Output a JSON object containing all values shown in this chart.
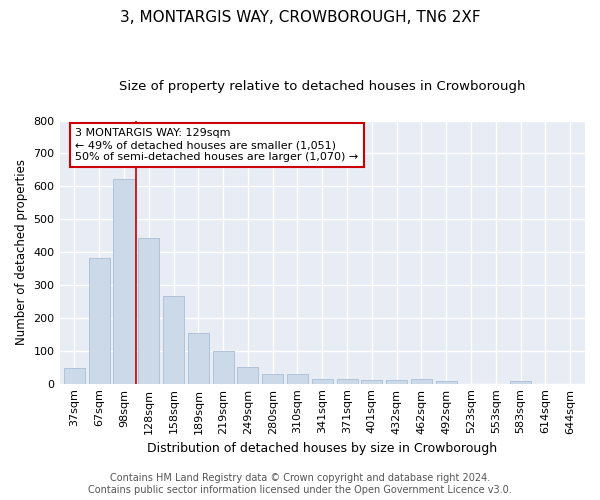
{
  "title": "3, MONTARGIS WAY, CROWBOROUGH, TN6 2XF",
  "subtitle": "Size of property relative to detached houses in Crowborough",
  "xlabel": "Distribution of detached houses by size in Crowborough",
  "ylabel": "Number of detached properties",
  "categories": [
    "37sqm",
    "67sqm",
    "98sqm",
    "128sqm",
    "158sqm",
    "189sqm",
    "219sqm",
    "249sqm",
    "280sqm",
    "310sqm",
    "341sqm",
    "371sqm",
    "401sqm",
    "432sqm",
    "462sqm",
    "492sqm",
    "523sqm",
    "553sqm",
    "583sqm",
    "614sqm",
    "644sqm"
  ],
  "values": [
    47,
    383,
    623,
    443,
    268,
    153,
    98,
    52,
    28,
    28,
    15,
    15,
    10,
    10,
    13,
    8,
    0,
    0,
    8,
    0,
    0
  ],
  "bar_color": "#ccd9e8",
  "bar_edge_color": "#aabdd4",
  "vline_x": 2.5,
  "vline_color": "#cc0000",
  "annotation_text": "3 MONTARGIS WAY: 129sqm\n← 49% of detached houses are smaller (1,051)\n50% of semi-detached houses are larger (1,070) →",
  "annotation_box_facecolor": "#ffffff",
  "annotation_box_edgecolor": "#cc0000",
  "ylim": [
    0,
    800
  ],
  "yticks": [
    0,
    100,
    200,
    300,
    400,
    500,
    600,
    700,
    800
  ],
  "plot_bg_color": "#e8ecf4",
  "fig_bg_color": "#ffffff",
  "grid_color": "#ffffff",
  "footer": "Contains HM Land Registry data © Crown copyright and database right 2024.\nContains public sector information licensed under the Open Government Licence v3.0.",
  "title_fontsize": 11,
  "subtitle_fontsize": 9.5,
  "xlabel_fontsize": 9,
  "ylabel_fontsize": 8.5,
  "tick_fontsize": 8,
  "annot_fontsize": 8,
  "footer_fontsize": 7
}
